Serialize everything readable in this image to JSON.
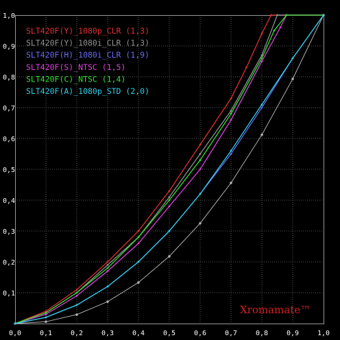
{
  "chart_data": {
    "type": "line",
    "title": "",
    "xlabel": "",
    "ylabel": "",
    "xlim": [
      0.0,
      1.0
    ],
    "ylim": [
      0.0,
      1.0
    ],
    "grid": true,
    "legend_position": "top-left",
    "watermark": "Xromamate™",
    "x_ticks": [
      "0,0",
      "0,1",
      "0,2",
      "0,3",
      "0,4",
      "0,5",
      "0,6",
      "0,7",
      "0,8",
      "0,9",
      "1,0"
    ],
    "y_ticks": [
      "0,1",
      "0,2",
      "0,3",
      "0,4",
      "0,5",
      "0,6",
      "0,7",
      "0,8",
      "0,9",
      "1,0"
    ],
    "reference_curve": {
      "color": "#b0b0b0",
      "x": [
        0.0,
        0.1,
        0.2,
        0.3,
        0.4,
        0.5,
        0.6,
        0.7,
        0.8,
        0.9,
        1.0
      ],
      "y": [
        0.0,
        0.006,
        0.029,
        0.071,
        0.133,
        0.218,
        0.325,
        0.456,
        0.612,
        0.793,
        1.0
      ]
    },
    "series": [
      {
        "name": "SLT420F(Y)_1080p_CLR (1,3)",
        "color": "#e03030",
        "x": [
          0.0,
          0.1,
          0.2,
          0.3,
          0.4,
          0.5,
          0.6,
          0.7,
          0.75,
          0.8,
          0.83,
          1.0
        ],
        "y": [
          0.0,
          0.04,
          0.11,
          0.2,
          0.3,
          0.43,
          0.58,
          0.73,
          0.83,
          0.94,
          1.0,
          1.0
        ]
      },
      {
        "name": "SLT420F(Y)_1080i_CLR (1,3)",
        "color": "#909090",
        "x": [
          0.0,
          0.1,
          0.2,
          0.3,
          0.4,
          0.5,
          0.6,
          0.7,
          0.8,
          0.85,
          1.0
        ],
        "y": [
          0.0,
          0.035,
          0.1,
          0.19,
          0.28,
          0.41,
          0.55,
          0.69,
          0.87,
          1.0,
          1.0
        ]
      },
      {
        "name": "SLT420F(H)_1080i_CLR (1,9)",
        "color": "#6a6af5",
        "x": [
          0.0,
          0.1,
          0.2,
          0.3,
          0.4,
          0.5,
          0.6,
          0.7,
          0.8,
          0.9,
          1.0
        ],
        "y": [
          0.0,
          0.02,
          0.06,
          0.12,
          0.2,
          0.3,
          0.42,
          0.55,
          0.7,
          0.86,
          1.0
        ]
      },
      {
        "name": "SLT420F(S)_NTSC (1,5)",
        "color": "#e040e0",
        "x": [
          0.0,
          0.1,
          0.2,
          0.3,
          0.4,
          0.5,
          0.6,
          0.7,
          0.8,
          0.86,
          0.88,
          1.0
        ],
        "y": [
          0.0,
          0.03,
          0.09,
          0.17,
          0.26,
          0.38,
          0.5,
          0.66,
          0.85,
          0.96,
          1.0,
          1.0
        ]
      },
      {
        "name": "SLT420F(C)_NTSC (1,4)",
        "color": "#30e030",
        "x": [
          0.0,
          0.1,
          0.2,
          0.3,
          0.4,
          0.5,
          0.6,
          0.7,
          0.8,
          0.84,
          0.88,
          1.0
        ],
        "y": [
          0.0,
          0.035,
          0.1,
          0.18,
          0.28,
          0.4,
          0.53,
          0.68,
          0.86,
          0.95,
          1.0,
          1.0
        ]
      },
      {
        "name": "SLT420F(A)_1080p_STD (2,0)",
        "color": "#30d0e8",
        "x": [
          0.0,
          0.1,
          0.2,
          0.3,
          0.4,
          0.5,
          0.6,
          0.7,
          0.8,
          0.9,
          1.0
        ],
        "y": [
          0.0,
          0.02,
          0.06,
          0.12,
          0.2,
          0.3,
          0.42,
          0.56,
          0.71,
          0.86,
          1.0
        ]
      }
    ]
  }
}
